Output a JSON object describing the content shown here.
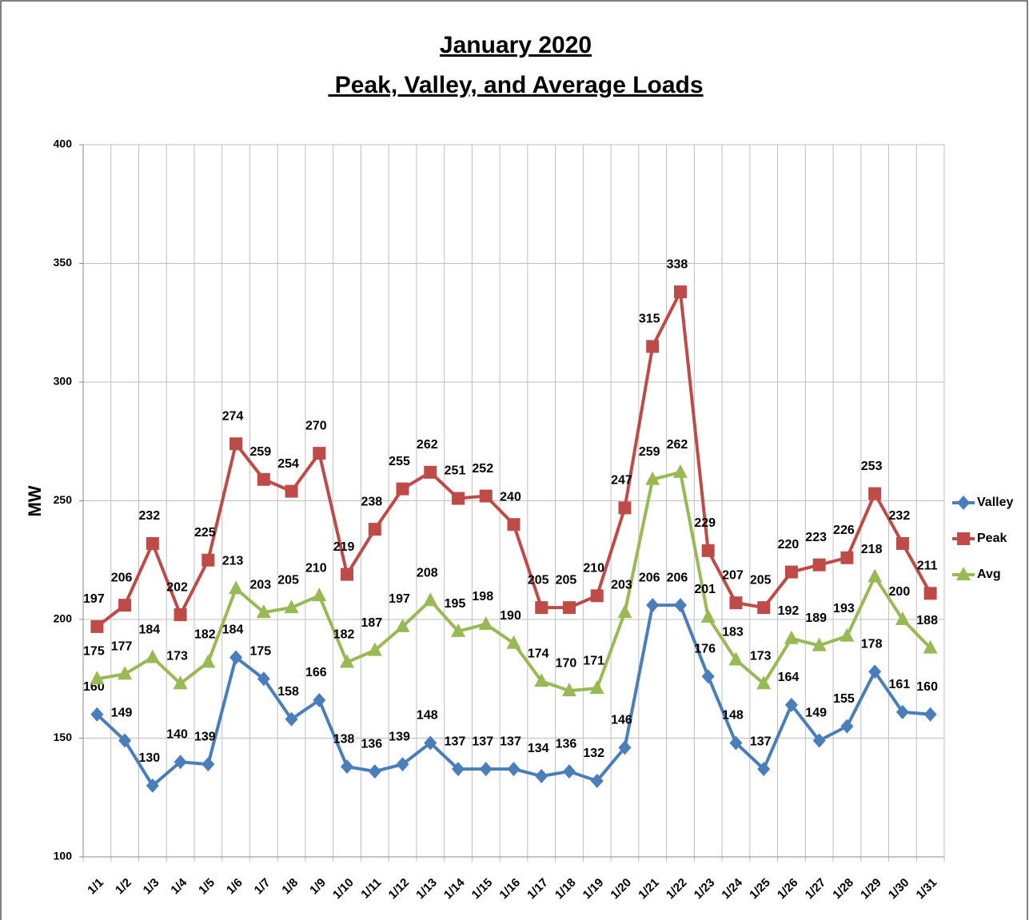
{
  "chart_data": {
    "type": "line",
    "title": "January 2020",
    "subtitle": " Peak, Valley, and Average Loads",
    "y_label": "MW",
    "categories": [
      "1/1",
      "1/2",
      "1/3",
      "1/4",
      "1/5",
      "1/6",
      "1/7",
      "1/8",
      "1/9",
      "1/10",
      "1/11",
      "1/12",
      "1/13",
      "1/14",
      "1/15",
      "1/16",
      "1/17",
      "1/18",
      "1/19",
      "1/20",
      "1/21",
      "1/22",
      "1/23",
      "1/24",
      "1/25",
      "1/26",
      "1/27",
      "1/28",
      "1/29",
      "1/30",
      "1/31"
    ],
    "series": [
      {
        "name": "Valley",
        "color": "#4a7ebb",
        "marker": "diamond",
        "values": [
          160,
          149,
          130,
          140,
          139,
          184,
          175,
          158,
          166,
          138,
          136,
          139,
          148,
          137,
          137,
          137,
          134,
          136,
          132,
          146,
          206,
          206,
          176,
          148,
          137,
          164,
          149,
          155,
          178,
          161,
          160
        ]
      },
      {
        "name": "Peak",
        "color": "#be4b48",
        "marker": "square",
        "values": [
          197,
          206,
          232,
          202,
          225,
          274,
          259,
          254,
          270,
          219,
          238,
          255,
          262,
          251,
          252,
          240,
          205,
          205,
          210,
          247,
          315,
          338,
          229,
          207,
          205,
          220,
          223,
          226,
          253,
          232,
          211
        ]
      },
      {
        "name": "Avg",
        "color": "#98b954",
        "marker": "triangle",
        "values": [
          175,
          177,
          184,
          173,
          182,
          213,
          203,
          205,
          210,
          182,
          187,
          197,
          208,
          195,
          198,
          190,
          174,
          170,
          171,
          203,
          259,
          262,
          201,
          183,
          173,
          192,
          189,
          193,
          218,
          200,
          188
        ]
      }
    ],
    "ylim": [
      100,
      400
    ],
    "yticks": [
      100,
      150,
      200,
      250,
      300,
      350,
      400
    ],
    "grid": true,
    "legend": "right",
    "data_labels": true
  }
}
